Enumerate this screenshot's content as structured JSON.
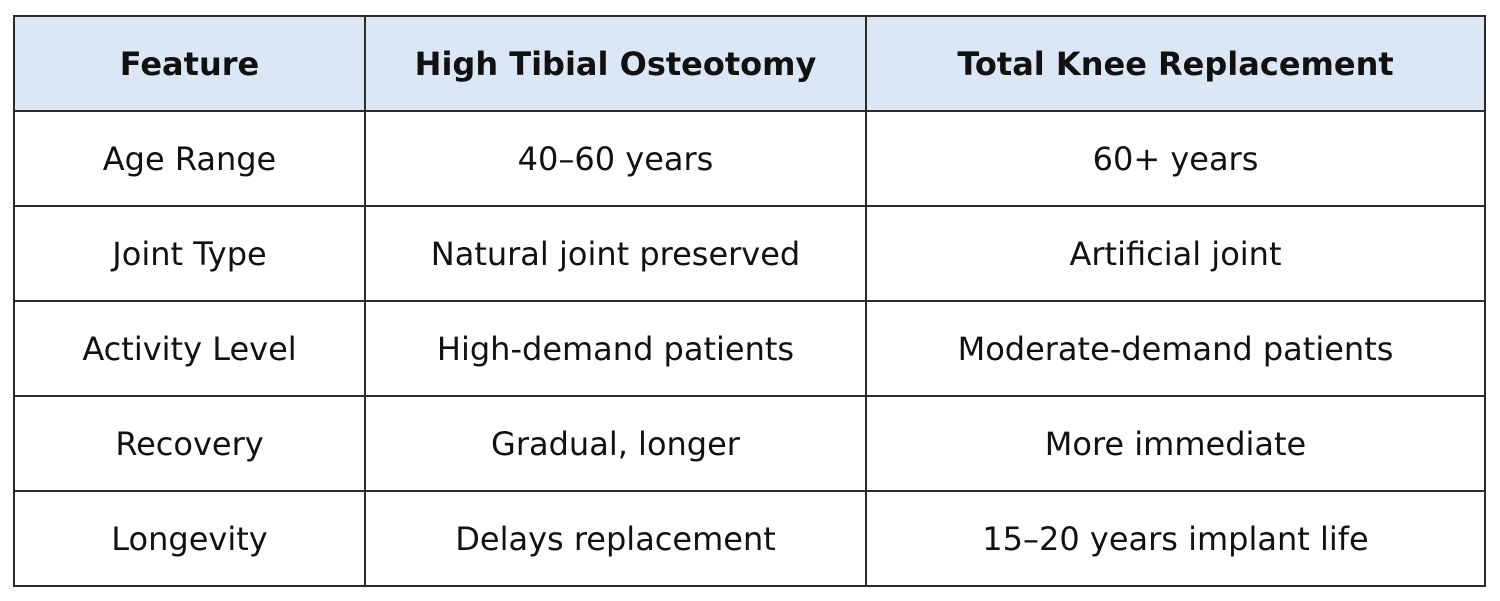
{
  "table": {
    "header": [
      "Feature",
      "High Tibial Osteotomy",
      "Total Knee Replacement"
    ],
    "rows": [
      [
        "Age Range",
        "40–60 years",
        "60+ years"
      ],
      [
        "Joint Type",
        "Natural joint preserved",
        "Artificial joint"
      ],
      [
        "Activity Level",
        "High-demand patients",
        "Moderate-demand patients"
      ],
      [
        "Recovery",
        "Gradual, longer",
        "More immediate"
      ],
      [
        "Longevity",
        "Delays replacement",
        "15–20 years implant life"
      ]
    ]
  }
}
